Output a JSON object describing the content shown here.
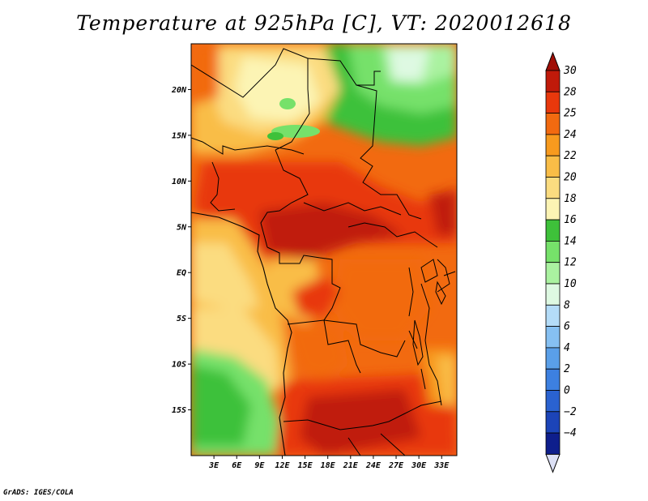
{
  "title": "Temperature at 925hPa [C], VT: 2020012618",
  "credit": "GrADS: IGES/COLA",
  "map": {
    "lon_range": [
      0,
      35
    ],
    "lat_range": [
      -20,
      25
    ],
    "lat_ticks": [
      {
        "value": 20,
        "label": "20N"
      },
      {
        "value": 15,
        "label": "15N"
      },
      {
        "value": 10,
        "label": "10N"
      },
      {
        "value": 5,
        "label": "5N"
      },
      {
        "value": 0,
        "label": "EQ"
      },
      {
        "value": -5,
        "label": "5S"
      },
      {
        "value": -10,
        "label": "10S"
      },
      {
        "value": -15,
        "label": "15S"
      }
    ],
    "lon_ticks": [
      {
        "value": 3,
        "label": "3E"
      },
      {
        "value": 6,
        "label": "6E"
      },
      {
        "value": 9,
        "label": "9E"
      },
      {
        "value": 12,
        "label": "12E"
      },
      {
        "value": 15,
        "label": "15E"
      },
      {
        "value": 18,
        "label": "18E"
      },
      {
        "value": 21,
        "label": "21E"
      },
      {
        "value": 24,
        "label": "24E"
      },
      {
        "value": 27,
        "label": "27E"
      },
      {
        "value": 30,
        "label": "30E"
      },
      {
        "value": 33,
        "label": "33E"
      }
    ]
  },
  "colorbar": {
    "levels": [
      {
        "label": "30",
        "color": "#c01a0a"
      },
      {
        "label": "28",
        "color": "#e8380c"
      },
      {
        "label": "25",
        "color": "#f26a10"
      },
      {
        "label": "24",
        "color": "#f79a1e"
      },
      {
        "label": "22",
        "color": "#f9bd47"
      },
      {
        "label": "20",
        "color": "#fbdc80"
      },
      {
        "label": "18",
        "color": "#fcf4b4"
      },
      {
        "label": "16",
        "color": "#3ec13a"
      },
      {
        "label": "14",
        "color": "#76e16a"
      },
      {
        "label": "12",
        "color": "#aaf2a0"
      },
      {
        "label": "10",
        "color": "#def9e2"
      },
      {
        "label": "8",
        "color": "#b4dcf8"
      },
      {
        "label": "6",
        "color": "#86c0f2"
      },
      {
        "label": "4",
        "color": "#5a9fe8"
      },
      {
        "label": "2",
        "color": "#3d80e0"
      },
      {
        "label": "0",
        "color": "#2a62d0"
      },
      {
        "label": "−2",
        "color": "#1c44b8"
      },
      {
        "label": "−4",
        "color": "#0e1e8c"
      }
    ],
    "top_arrow_color": "#a00e06",
    "bottom_arrow_color": "#dce0f5"
  }
}
